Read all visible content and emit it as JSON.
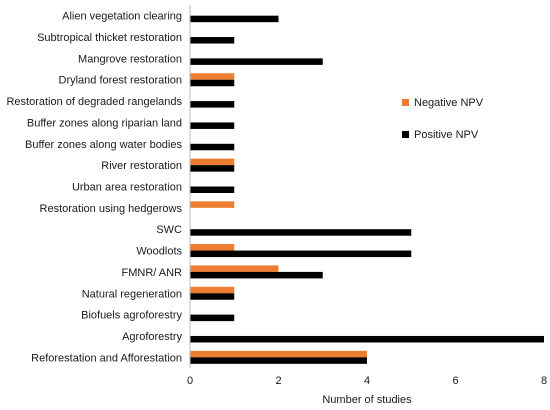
{
  "chart_data": {
    "type": "bar",
    "orientation": "horizontal",
    "categories": [
      "Alien vegetation clearing",
      "Subtropical thicket restoration",
      "Mangrove restoration",
      "Dryland forest restoration",
      "Restoration of degraded rangelands",
      "Buffer zones along riparian land",
      "Buffer zones along water bodies",
      "River restoration",
      "Urban area restoration",
      "Restoration using hedgerows",
      "SWC",
      "Woodlots",
      "FMNR/ ANR",
      "Natural regeneration",
      "Biofuels agroforestry",
      "Agroforestry",
      "Reforestation and Afforestation"
    ],
    "series": [
      {
        "name": "Negative NPV",
        "color": "#ED7D31",
        "values": [
          0,
          0,
          0,
          1,
          0,
          0,
          0,
          1,
          0,
          1,
          0,
          1,
          2,
          1,
          0,
          0,
          4
        ]
      },
      {
        "name": "Positive NPV",
        "color": "#000000",
        "values": [
          2,
          1,
          3,
          1,
          1,
          1,
          1,
          1,
          1,
          0,
          5,
          5,
          3,
          1,
          1,
          8,
          4
        ]
      }
    ],
    "xlabel": "Number of studies",
    "ylabel": "",
    "xlim": [
      0,
      8
    ],
    "xticks": [
      "0",
      "2",
      "4",
      "6",
      "8"
    ],
    "grid": false,
    "legend_position": "right"
  }
}
